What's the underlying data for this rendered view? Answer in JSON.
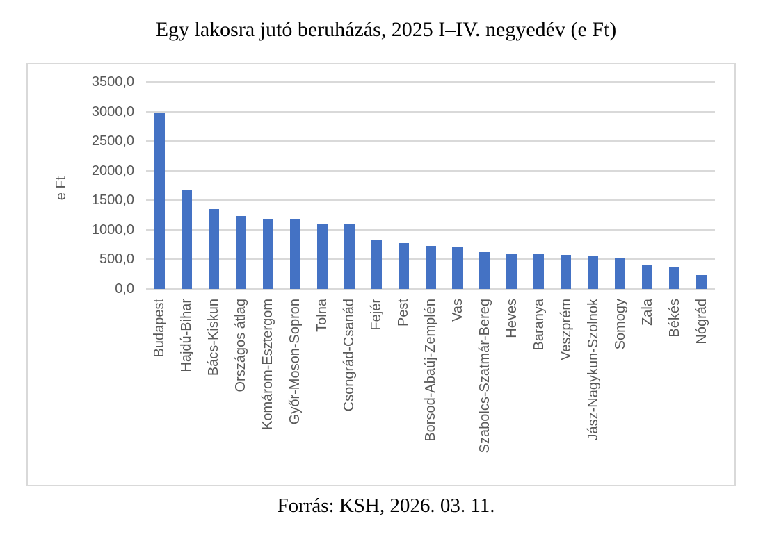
{
  "title": "Egy lakosra jutó beruházás, 2025 I–IV. negyedév (e Ft)",
  "source": "Forrás: KSH, 2026. 03. 11.",
  "colors": {
    "bar": "#4472C4",
    "gridline": "#D9D9D9",
    "axis_text": "#595959",
    "frame_border": "#D9D9D9",
    "title_text": "#000000"
  },
  "chart_data": {
    "type": "bar",
    "title": "Egy lakosra jutó beruházás, 2025 I–IV. negyedév (e Ft)",
    "xlabel": "",
    "ylabel": "e Ft",
    "ylim": [
      0,
      3500
    ],
    "ytick_step": 500,
    "ytick_labels": [
      "0,0",
      "500,0",
      "1000,0",
      "1500,0",
      "2000,0",
      "2500,0",
      "3000,0",
      "3500,0"
    ],
    "grid": true,
    "legend": false,
    "categories": [
      "Budapest",
      "Hajdú-Bihar",
      "Bács-Kiskun",
      "Országos átlag",
      "Komárom-Esztergom",
      "Győr-Moson-Sopron",
      "Tolna",
      "Csongrád-Csanád",
      "Fejér",
      "Pest",
      "Borsod-Abaúj-Zemplén",
      "Vas",
      "Szabolcs-Szatmár-Bereg",
      "Heves",
      "Baranya",
      "Veszprém",
      "Jász-Nagykun-Szolnok",
      "Somogy",
      "Zala",
      "Békés",
      "Nógrád"
    ],
    "values": [
      2980,
      1675,
      1355,
      1230,
      1190,
      1170,
      1110,
      1105,
      835,
      770,
      725,
      710,
      620,
      600,
      600,
      580,
      550,
      530,
      405,
      370,
      230
    ]
  }
}
